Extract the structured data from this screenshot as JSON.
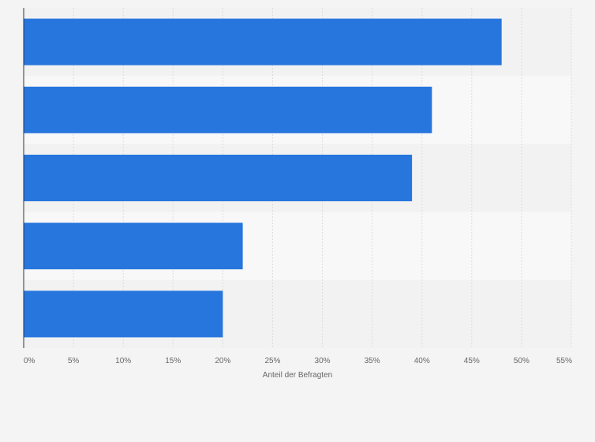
{
  "chart_data": {
    "type": "bar",
    "orientation": "horizontal",
    "categories": [
      "",
      "",
      "",
      "",
      ""
    ],
    "values": [
      48,
      41,
      39,
      22,
      20
    ],
    "xlabel": "Anteil der Befragten",
    "ylabel": "",
    "xlim": [
      0,
      55
    ],
    "x_ticks": [
      0,
      5,
      10,
      15,
      20,
      25,
      30,
      35,
      40,
      45,
      50,
      55
    ],
    "x_tick_labels": [
      "0%",
      "5%",
      "10%",
      "15%",
      "20%",
      "25%",
      "30%",
      "35%",
      "40%",
      "45%",
      "50%",
      "55%"
    ],
    "grid": true,
    "legend": "none"
  },
  "colors": {
    "bar": "#2776dd",
    "background": "#f4f4f4",
    "band_light": "#f8f8f8",
    "band_dark": "#f2f2f2",
    "grid": "#dcdcdc",
    "axis": "#333333",
    "text": "#666666"
  }
}
